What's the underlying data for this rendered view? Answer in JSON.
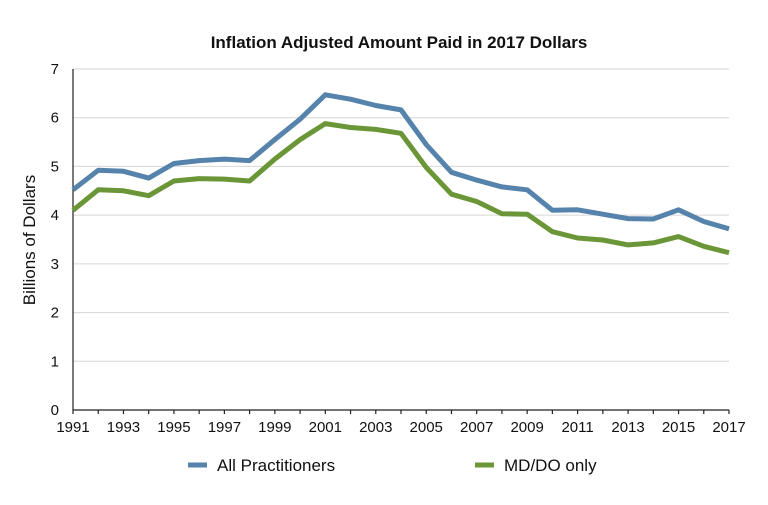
{
  "chart_data": {
    "type": "line",
    "title": "Inflation Adjusted Amount Paid in 2017 Dollars",
    "xlabel": "",
    "ylabel": "Billions of Dollars",
    "ylim": [
      0,
      7
    ],
    "yticks": [
      "0",
      "1",
      "2",
      "3",
      "4",
      "5",
      "6",
      "7"
    ],
    "x": [
      1991,
      1992,
      1993,
      1994,
      1995,
      1996,
      1997,
      1998,
      1999,
      2000,
      2001,
      2002,
      2003,
      2004,
      2005,
      2006,
      2007,
      2008,
      2009,
      2010,
      2011,
      2012,
      2013,
      2014,
      2015,
      2016,
      2017
    ],
    "xtick_labels": [
      "1991",
      "1993",
      "1995",
      "1997",
      "1999",
      "2001",
      "2003",
      "2005",
      "2007",
      "2009",
      "2011",
      "2013",
      "2015",
      "2017"
    ],
    "grid": true,
    "legend_position": "bottom",
    "series": [
      {
        "name": "All Practitioners",
        "color": "#5683ab",
        "values": [
          4.52,
          4.92,
          4.9,
          4.76,
          5.06,
          5.12,
          5.15,
          5.12,
          5.55,
          5.97,
          6.47,
          6.38,
          6.25,
          6.16,
          5.45,
          4.88,
          4.72,
          4.58,
          4.52,
          4.1,
          4.11,
          4.02,
          3.93,
          3.92,
          4.11,
          3.87,
          3.72
        ]
      },
      {
        "name": "MD/DO only",
        "color": "#6b9637",
        "values": [
          4.1,
          4.52,
          4.5,
          4.4,
          4.7,
          4.75,
          4.74,
          4.7,
          5.15,
          5.55,
          5.88,
          5.8,
          5.76,
          5.68,
          4.98,
          4.43,
          4.28,
          4.03,
          4.02,
          3.66,
          3.53,
          3.49,
          3.39,
          3.43,
          3.56,
          3.36,
          3.23
        ]
      }
    ]
  }
}
